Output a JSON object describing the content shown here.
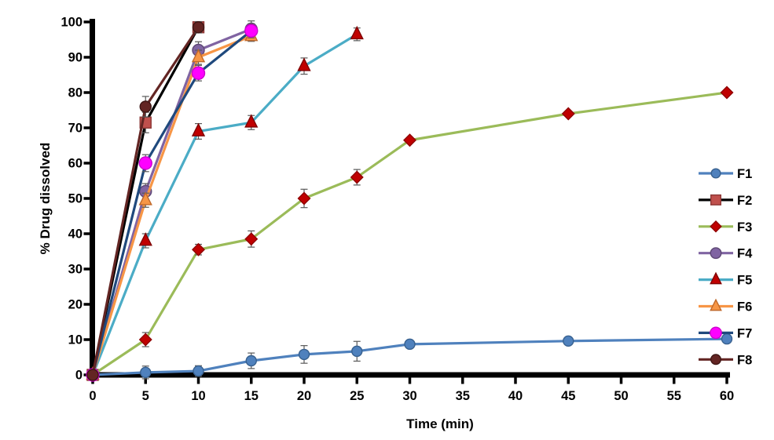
{
  "chart_data": {
    "type": "line",
    "title": "",
    "xlabel": "Time (min)",
    "ylabel": "% Drug dissolved",
    "xlim": [
      0,
      60
    ],
    "ylim": [
      0,
      100
    ],
    "x_ticks": [
      0,
      5,
      10,
      15,
      20,
      25,
      30,
      35,
      40,
      45,
      50,
      55,
      60
    ],
    "y_ticks": [
      0,
      10,
      20,
      30,
      40,
      50,
      60,
      70,
      80,
      90,
      100
    ],
    "grid": false,
    "legend_position": "right",
    "axis_color": "#000000",
    "error_bar_color": "#595959",
    "series": [
      {
        "name": "F1",
        "line_color": "#4F81BD",
        "marker": "circle",
        "marker_fill": "#4F81BD",
        "marker_stroke": "#38618f",
        "marker_size": 13,
        "x": [
          0,
          5,
          10,
          15,
          20,
          25,
          30,
          45,
          60
        ],
        "y": [
          0,
          0.7,
          1.1,
          4.0,
          5.8,
          6.7,
          8.7,
          9.6,
          10.2
        ],
        "err": [
          0,
          1.8,
          1.5,
          2.2,
          2.5,
          2.8,
          0,
          0,
          0
        ]
      },
      {
        "name": "F2",
        "line_color": "#000000",
        "marker": "square",
        "marker_fill": "#C0504D",
        "marker_stroke": "#8c3836",
        "marker_size": 14,
        "x": [
          0,
          5,
          10
        ],
        "y": [
          0,
          71.5,
          98.5
        ],
        "err": [
          0,
          2.9,
          1.6
        ]
      },
      {
        "name": "F3",
        "line_color": "#9BBB59",
        "marker": "diamond",
        "marker_fill": "#C00000",
        "marker_stroke": "#8f0000",
        "marker_size": 15,
        "x": [
          0,
          5,
          10,
          15,
          20,
          25,
          30,
          45,
          60
        ],
        "y": [
          0,
          10,
          35.5,
          38.5,
          50,
          56,
          66.5,
          74,
          80
        ],
        "err": [
          0,
          2.0,
          1.5,
          2.3,
          2.6,
          2.2,
          0,
          0,
          0
        ]
      },
      {
        "name": "F4",
        "line_color": "#8064A2",
        "marker": "circle",
        "marker_fill": "#8064A2",
        "marker_stroke": "#5e4875",
        "marker_size": 15,
        "x": [
          0,
          5,
          10,
          15
        ],
        "y": [
          0,
          52,
          92,
          98
        ],
        "err": [
          0,
          2.2,
          2.4,
          2.3
        ]
      },
      {
        "name": "F5",
        "line_color": "#4BACC6",
        "marker": "triangle",
        "marker_fill": "#C00000",
        "marker_stroke": "#7f0000",
        "marker_size": 15,
        "x": [
          0,
          5,
          10,
          15,
          20,
          25
        ],
        "y": [
          0,
          38,
          69,
          71.5,
          87.5,
          96.5
        ],
        "err": [
          0,
          2.0,
          2.2,
          2.0,
          2.3,
          1.8
        ]
      },
      {
        "name": "F6",
        "line_color": "#F79646",
        "marker": "triangle",
        "marker_fill": "#F79646",
        "marker_stroke": "#c0692b",
        "marker_size": 15,
        "x": [
          0,
          5,
          10,
          15
        ],
        "y": [
          0,
          49.5,
          90,
          96
        ],
        "err": [
          0,
          2.0,
          2.0,
          1.5
        ]
      },
      {
        "name": "F7",
        "line_color": "#1F497D",
        "marker": "circle",
        "marker_fill": "#FF00FF",
        "marker_stroke": "#cc00cc",
        "marker_size": 16,
        "x": [
          0,
          5,
          10,
          15
        ],
        "y": [
          0,
          60,
          85.5,
          97.5
        ],
        "err": [
          0,
          2.4,
          2.2,
          2.0
        ]
      },
      {
        "name": "F8",
        "line_color": "#632523",
        "marker": "circle",
        "marker_fill": "#632523",
        "marker_stroke": "#3f1715",
        "marker_size": 14,
        "x": [
          0,
          5,
          10
        ],
        "y": [
          0,
          76,
          98.5
        ],
        "err": [
          0,
          2.9,
          1.6
        ]
      }
    ]
  }
}
